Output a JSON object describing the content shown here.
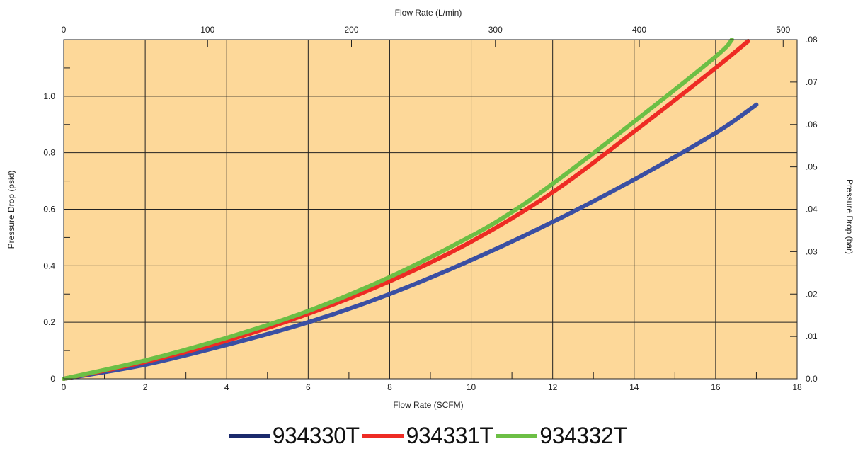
{
  "chart_data": {
    "type": "line",
    "title": "",
    "xlabel": "Flow Rate (SCFM)",
    "ylabel": "Pressure Drop (psid)",
    "x2label": "Flow Rate (L/min)",
    "y2label": "Pressure Drop (bar)",
    "xlim": [
      0,
      18
    ],
    "ylim": [
      0,
      1.2
    ],
    "x2lim": [
      0,
      509.7
    ],
    "y2lim": [
      0,
      0.08
    ],
    "x_ticks": [
      0,
      2,
      4,
      6,
      8,
      10,
      12,
      14,
      16,
      18
    ],
    "x_tick_labels": [
      "0",
      "2",
      "4",
      "6",
      "8",
      "10",
      "12",
      "14",
      "16",
      "18"
    ],
    "y_ticks": [
      0,
      0.2,
      0.4,
      0.6,
      0.8,
      1.0
    ],
    "y_tick_labels": [
      "0",
      "0.2",
      "0.4",
      "0.6",
      "0.8",
      "1.0"
    ],
    "x2_ticks": [
      0,
      100,
      200,
      300,
      400,
      500
    ],
    "x2_tick_labels": [
      "0",
      "100",
      "200",
      "300",
      "400",
      "500"
    ],
    "y2_ticks": [
      0,
      0.01,
      0.02,
      0.03,
      0.04,
      0.05,
      0.06,
      0.07,
      0.08
    ],
    "y2_tick_labels": [
      "0.0",
      ".01",
      ".02",
      ".03",
      ".04",
      ".05",
      ".06",
      ".07",
      ".08"
    ],
    "grid": true,
    "background_color": "#fdd899",
    "legend_position": "bottom",
    "series": [
      {
        "name": "934330T",
        "color": "#3a4fa3",
        "legend_color": "#1a2a6c",
        "x": [
          0,
          2,
          4,
          6,
          8,
          10,
          12,
          14,
          16,
          17
        ],
        "y": [
          0,
          0.05,
          0.12,
          0.2,
          0.3,
          0.42,
          0.555,
          0.705,
          0.87,
          0.97
        ]
      },
      {
        "name": "934331T",
        "color": "#ee2b24",
        "legend_color": "#ee2b24",
        "x": [
          0,
          2,
          4,
          6,
          8,
          10,
          12,
          14,
          16,
          16.8
        ],
        "y": [
          0,
          0.06,
          0.135,
          0.23,
          0.345,
          0.485,
          0.66,
          0.875,
          1.1,
          1.195
        ]
      },
      {
        "name": "934332T",
        "color": "#6cbf45",
        "legend_color": "#6cbf45",
        "x": [
          0,
          2,
          4,
          6,
          8,
          10,
          11,
          12,
          14,
          16,
          16.4
        ],
        "y": [
          0,
          0.065,
          0.145,
          0.24,
          0.36,
          0.505,
          0.59,
          0.69,
          0.91,
          1.14,
          1.2
        ]
      }
    ]
  }
}
